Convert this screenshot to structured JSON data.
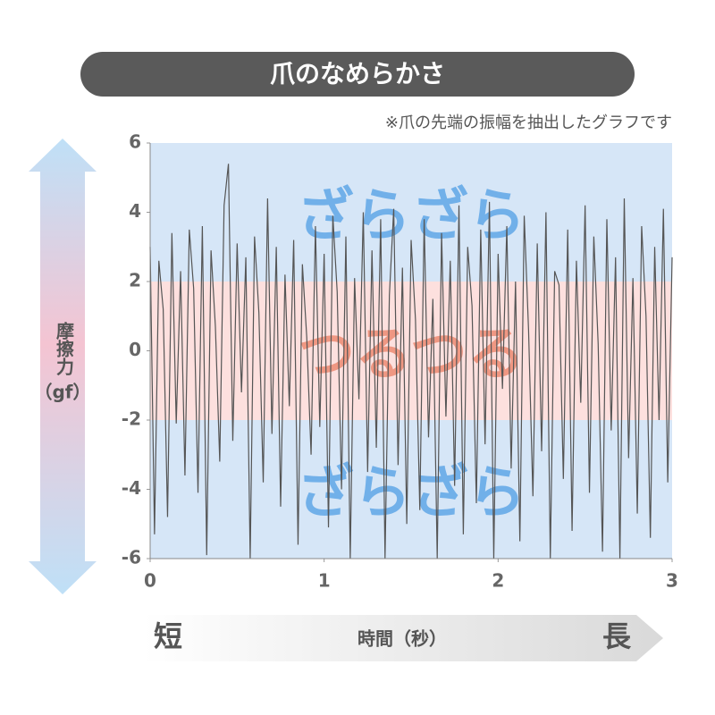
{
  "chart_data": {
    "type": "line",
    "title": "爪のなめらかさ",
    "note": "※爪の先端の振幅を抽出したグラフです",
    "ylabel": "摩擦力",
    "yunit": "（gf）",
    "xlabel": "時間（秒）",
    "x_start_label": "短",
    "x_end_label": "長",
    "xlim": [
      0,
      3
    ],
    "xticks": [
      0,
      1,
      2,
      3
    ],
    "ylim": [
      -6,
      6
    ],
    "yticks": [
      -6,
      -4,
      -2,
      0,
      2,
      4,
      6
    ],
    "bands": [
      {
        "from": 2,
        "to": 6,
        "label": "ざらざら",
        "color": "#d6e6f7",
        "text_color": "#5fa6e6"
      },
      {
        "from": -2,
        "to": 2,
        "label": "つるつる",
        "color": "#fde0de",
        "text_color": "#ec8a72"
      },
      {
        "from": -6,
        "to": -2,
        "label": "ざらざら",
        "color": "#d6e6f7",
        "text_color": "#5fa6e6"
      }
    ],
    "series": [
      {
        "color": "#555555",
        "x": [
          0,
          0.025,
          0.05,
          0.075,
          0.1,
          0.125,
          0.15,
          0.175,
          0.2,
          0.225,
          0.25,
          0.275,
          0.3,
          0.325,
          0.35,
          0.375,
          0.4,
          0.425,
          0.45,
          0.475,
          0.5,
          0.525,
          0.55,
          0.575,
          0.6,
          0.625,
          0.65,
          0.675,
          0.7,
          0.725,
          0.75,
          0.775,
          0.8,
          0.825,
          0.85,
          0.875,
          0.9,
          0.925,
          0.95,
          0.975,
          1,
          1.025,
          1.05,
          1.075,
          1.1,
          1.125,
          1.15,
          1.175,
          1.2,
          1.225,
          1.25,
          1.275,
          1.3,
          1.325,
          1.35,
          1.375,
          1.4,
          1.425,
          1.45,
          1.475,
          1.5,
          1.525,
          1.55,
          1.575,
          1.6,
          1.625,
          1.65,
          1.675,
          1.7,
          1.725,
          1.75,
          1.775,
          1.8,
          1.825,
          1.85,
          1.875,
          1.9,
          1.925,
          1.95,
          1.975,
          2,
          2.025,
          2.05,
          2.075,
          2.1,
          2.125,
          2.15,
          2.175,
          2.2,
          2.225,
          2.25,
          2.275,
          2.3,
          2.325,
          2.35,
          2.375,
          2.4,
          2.425,
          2.45,
          2.475,
          2.5,
          2.525,
          2.55,
          2.575,
          2.6,
          2.625,
          2.65,
          2.675,
          2.7,
          2.725,
          2.75,
          2.775,
          2.8,
          2.825,
          2.85,
          2.875,
          2.9,
          2.925,
          2.95,
          2.975,
          3
        ],
        "values": [
          3.0,
          -5.3,
          2.6,
          1.2,
          -4.8,
          3.4,
          -2.1,
          2.3,
          -3.6,
          3.5,
          1.8,
          -4.1,
          3.6,
          -5.9,
          2.9,
          0.7,
          -3.2,
          4.2,
          5.4,
          -2.6,
          3.1,
          -1.2,
          2.7,
          -6.0,
          3.3,
          1.1,
          -3.8,
          4.4,
          -2.4,
          3.0,
          -4.5,
          2.2,
          -1.6,
          3.2,
          -5.6,
          2.5,
          0.4,
          -3.0,
          3.6,
          -2.2,
          2.8,
          -5.1,
          3.9,
          1.7,
          -4.0,
          3.3,
          -6.0,
          2.1,
          -1.4,
          4.0,
          -3.5,
          2.9,
          -2.8,
          3.8,
          -6.0,
          1.6,
          4.1,
          -3.3,
          2.4,
          -5.0,
          3.2,
          0.9,
          -4.6,
          3.8,
          -2.5,
          1.5,
          -6.0,
          3.4,
          -1.9,
          2.6,
          -3.9,
          4.2,
          -5.3,
          3.0,
          1.3,
          -4.4,
          3.5,
          -2.7,
          4.3,
          -6.0,
          2.8,
          -1.1,
          3.6,
          -3.4,
          2.0,
          -5.5,
          3.9,
          0.6,
          -4.2,
          3.1,
          -2.9,
          4.0,
          -6.0,
          2.3,
          1.9,
          -3.7,
          3.5,
          -5.2,
          2.6,
          -1.5,
          4.2,
          -4.1,
          3.3,
          0.2,
          -5.8,
          3.8,
          -2.3,
          2.7,
          -6.0,
          4.4,
          -3.1,
          2.1,
          -4.7,
          3.6,
          1.0,
          -5.4,
          3.0,
          -2.0,
          4.1,
          -3.8,
          2.7
        ]
      }
    ]
  }
}
